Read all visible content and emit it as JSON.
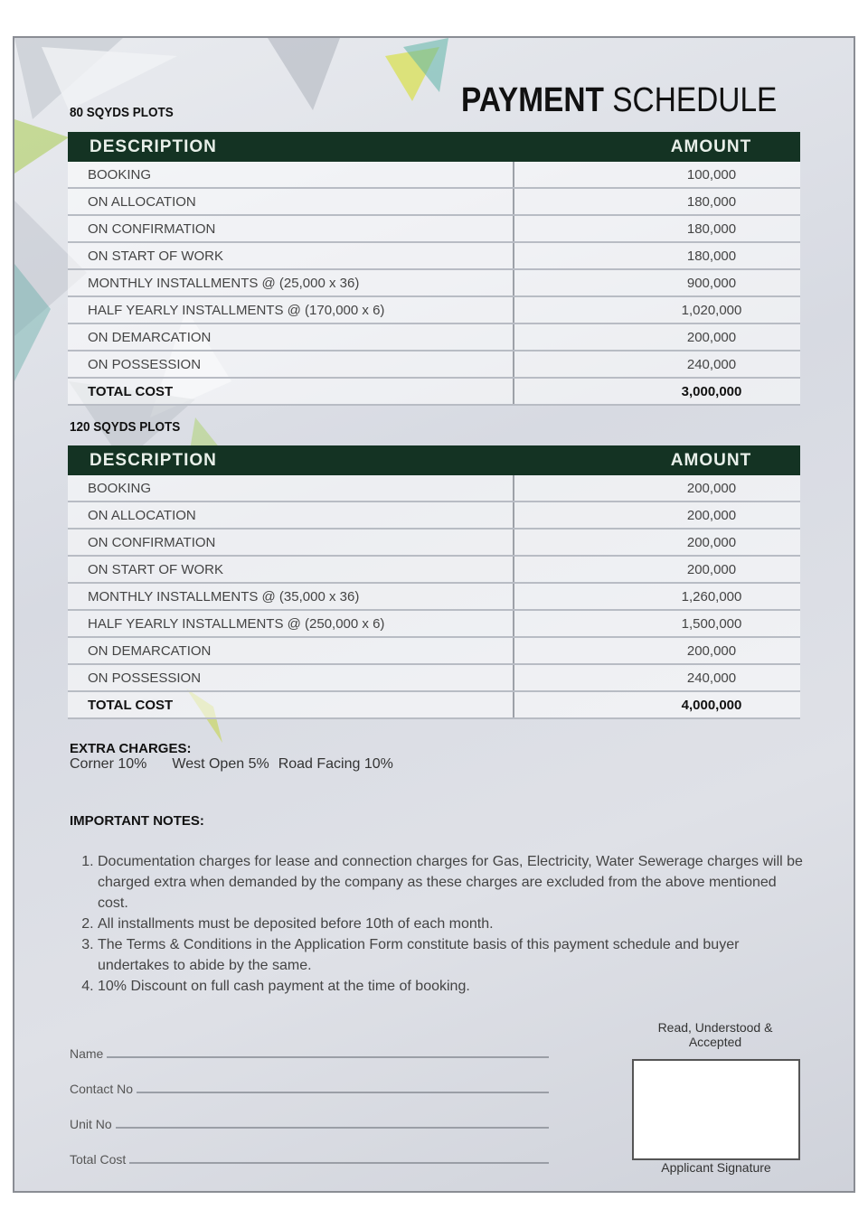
{
  "title": {
    "bold": "PAYMENT",
    "regular": "SCHEDULE"
  },
  "colors": {
    "header_bg": "#143323",
    "page_bg": "#dcdee5"
  },
  "tables": [
    {
      "section": "80 SQYDS PLOTS",
      "headers": [
        "DESCRIPTION",
        "AMOUNT"
      ],
      "rows": [
        [
          "BOOKING",
          "100,000"
        ],
        [
          "ON ALLOCATION",
          "180,000"
        ],
        [
          "ON CONFIRMATION",
          "180,000"
        ],
        [
          "ON START OF WORK",
          "180,000"
        ],
        [
          "MONTHLY INSTALLMENTS @ (25,000 x 36)",
          "900,000"
        ],
        [
          "HALF YEARLY INSTALLMENTS @ (170,000 x 6)",
          "1,020,000"
        ],
        [
          "ON DEMARCATION",
          "200,000"
        ],
        [
          "ON POSSESSION",
          "240,000"
        ]
      ],
      "total": [
        "TOTAL COST",
        "3,000,000"
      ]
    },
    {
      "section": "120 SQYDS PLOTS",
      "headers": [
        "DESCRIPTION",
        "AMOUNT"
      ],
      "rows": [
        [
          "BOOKING",
          "200,000"
        ],
        [
          "ON ALLOCATION",
          "200,000"
        ],
        [
          "ON CONFIRMATION",
          "200,000"
        ],
        [
          "ON START OF WORK",
          "200,000"
        ],
        [
          "MONTHLY INSTALLMENTS @ (35,000 x 36)",
          "1,260,000"
        ],
        [
          "HALF YEARLY INSTALLMENTS @ (250,000 x 6)",
          "1,500,000"
        ],
        [
          "ON DEMARCATION",
          "200,000"
        ],
        [
          "ON POSSESSION",
          "240,000"
        ]
      ],
      "total": [
        "TOTAL COST",
        "4,000,000"
      ]
    }
  ],
  "extra_charges": {
    "heading": "EXTRA CHARGES:",
    "items": [
      "Corner 10%",
      "West Open 5%",
      "Road Facing 10%"
    ]
  },
  "notes": {
    "heading": "IMPORTANT NOTES:",
    "items": [
      "Documentation charges for lease and connection charges for Gas, Electricity, Water Sewerage charges will be charged extra when demanded by the company as these charges are excluded from the above mentioned cost.",
      "All installments must be deposited before 10th of each month.",
      "The Terms & Conditions in the Application Form constitute basis of this payment schedule and buyer undertakes to abide by the same.",
      "10% Discount on full cash payment at the time of booking."
    ]
  },
  "fields": [
    "Name",
    "Contact No",
    "Unit No",
    "Total Cost"
  ],
  "signature": {
    "caption_top": "Read, Understood & Accepted",
    "caption_bottom": "Applicant Signature"
  }
}
